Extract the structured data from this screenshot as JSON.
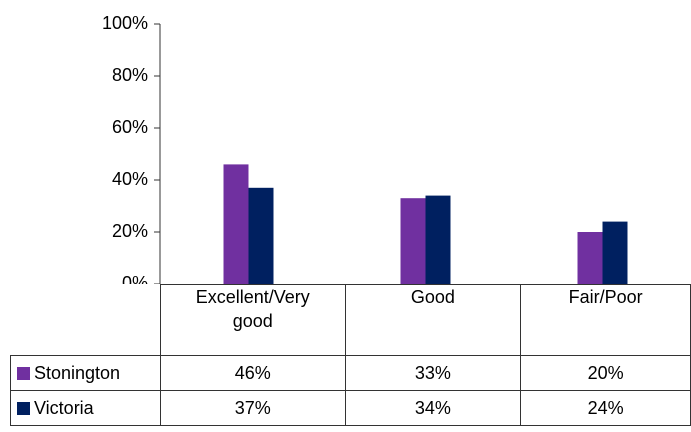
{
  "chart_data": {
    "type": "bar",
    "categories": [
      "Excellent/Very good",
      "Good",
      "Fair/Poor"
    ],
    "series": [
      {
        "name": "Stonington",
        "color": "#7030a0",
        "values": [
          46,
          33,
          20
        ],
        "value_labels": [
          "46%",
          "33%",
          "20%"
        ]
      },
      {
        "name": "Victoria",
        "color": "#002060",
        "values": [
          37,
          34,
          24
        ],
        "value_labels": [
          "37%",
          "34%",
          "24%"
        ]
      }
    ],
    "ylim": [
      0,
      100
    ],
    "yticks": [
      {
        "value": 0,
        "label": "0%"
      },
      {
        "value": 20,
        "label": "20%"
      },
      {
        "value": 40,
        "label": "40%"
      },
      {
        "value": 60,
        "label": "60%"
      },
      {
        "value": 80,
        "label": "80%"
      },
      {
        "value": 100,
        "label": "100%"
      }
    ]
  }
}
